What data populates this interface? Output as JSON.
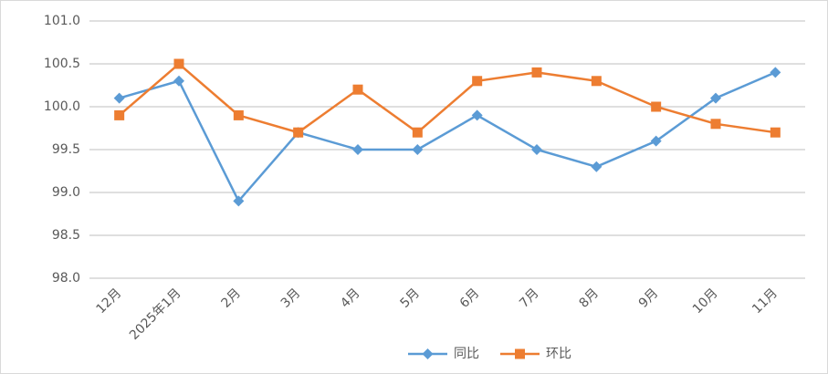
{
  "chart_data": {
    "type": "line",
    "categories": [
      "12月",
      "2025年1月",
      "2月",
      "3月",
      "4月",
      "5月",
      "6月",
      "7月",
      "8月",
      "9月",
      "10月",
      "11月"
    ],
    "series": [
      {
        "name": "同比",
        "color": "#5b9bd5",
        "marker": "diamond",
        "values": [
          100.1,
          100.3,
          98.9,
          99.7,
          99.5,
          99.5,
          99.9,
          99.5,
          99.3,
          99.6,
          100.1,
          100.4
        ]
      },
      {
        "name": "环比",
        "color": "#ed7d31",
        "marker": "square",
        "values": [
          99.9,
          100.5,
          99.9,
          99.7,
          100.2,
          99.7,
          100.3,
          100.4,
          100.3,
          100.0,
          99.8,
          99.7
        ]
      }
    ],
    "ylim": [
      98,
      101
    ],
    "yticks": [
      {
        "value": 98,
        "label": "98.0"
      },
      98.5,
      {
        "value": 99,
        "label": "99.0"
      },
      99.5,
      {
        "value": 100,
        "label": "100.0"
      },
      100.5,
      {
        "value": 101,
        "label": "101.0"
      }
    ],
    "grid": true,
    "legend": "bottom"
  }
}
